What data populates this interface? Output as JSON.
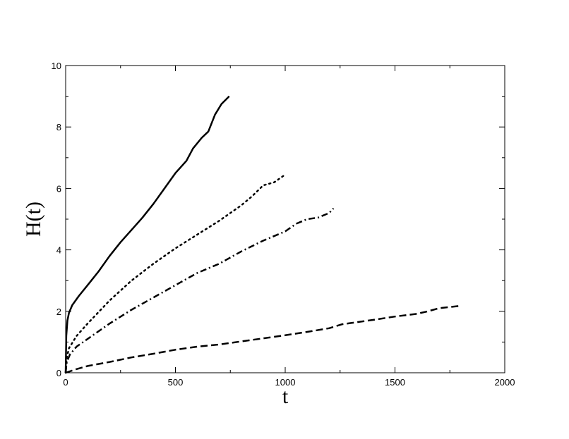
{
  "chart_data": {
    "type": "line",
    "title": "",
    "xlabel": "t",
    "ylabel": "H(t)",
    "xlim": [
      0,
      2000
    ],
    "ylim": [
      0,
      10
    ],
    "x_ticks": [
      0,
      500,
      1000,
      1500,
      2000
    ],
    "y_ticks": [
      0,
      2,
      4,
      6,
      8,
      10
    ],
    "grid": false,
    "legend": "none",
    "series": [
      {
        "style": "solid",
        "points": [
          [
            0,
            0
          ],
          [
            3,
            1.2
          ],
          [
            8,
            1.7
          ],
          [
            15,
            1.95
          ],
          [
            30,
            2.2
          ],
          [
            60,
            2.5
          ],
          [
            100,
            2.85
          ],
          [
            150,
            3.3
          ],
          [
            200,
            3.8
          ],
          [
            250,
            4.25
          ],
          [
            300,
            4.65
          ],
          [
            350,
            5.05
          ],
          [
            400,
            5.5
          ],
          [
            450,
            6.0
          ],
          [
            500,
            6.5
          ],
          [
            550,
            6.9
          ],
          [
            580,
            7.3
          ],
          [
            620,
            7.65
          ],
          [
            650,
            7.85
          ],
          [
            680,
            8.4
          ],
          [
            710,
            8.75
          ],
          [
            745,
            9.0
          ]
        ]
      },
      {
        "style": "dotted",
        "points": [
          [
            0,
            0
          ],
          [
            5,
            0.5
          ],
          [
            15,
            0.8
          ],
          [
            50,
            1.2
          ],
          [
            100,
            1.6
          ],
          [
            200,
            2.35
          ],
          [
            300,
            3.0
          ],
          [
            400,
            3.55
          ],
          [
            500,
            4.05
          ],
          [
            600,
            4.5
          ],
          [
            700,
            4.95
          ],
          [
            800,
            5.45
          ],
          [
            850,
            5.75
          ],
          [
            900,
            6.1
          ],
          [
            950,
            6.2
          ],
          [
            1000,
            6.45
          ]
        ]
      },
      {
        "style": "dash-dot",
        "points": [
          [
            0,
            0
          ],
          [
            5,
            0.35
          ],
          [
            20,
            0.6
          ],
          [
            50,
            0.85
          ],
          [
            100,
            1.1
          ],
          [
            200,
            1.6
          ],
          [
            300,
            2.05
          ],
          [
            400,
            2.45
          ],
          [
            500,
            2.85
          ],
          [
            600,
            3.25
          ],
          [
            700,
            3.55
          ],
          [
            800,
            3.95
          ],
          [
            900,
            4.3
          ],
          [
            1000,
            4.6
          ],
          [
            1050,
            4.85
          ],
          [
            1100,
            5.0
          ],
          [
            1150,
            5.05
          ],
          [
            1200,
            5.2
          ],
          [
            1220,
            5.35
          ]
        ]
      },
      {
        "style": "dashed",
        "points": [
          [
            0,
            0
          ],
          [
            50,
            0.12
          ],
          [
            100,
            0.22
          ],
          [
            200,
            0.35
          ],
          [
            300,
            0.5
          ],
          [
            400,
            0.62
          ],
          [
            500,
            0.75
          ],
          [
            600,
            0.85
          ],
          [
            700,
            0.92
          ],
          [
            800,
            1.02
          ],
          [
            900,
            1.12
          ],
          [
            1000,
            1.22
          ],
          [
            1100,
            1.33
          ],
          [
            1200,
            1.45
          ],
          [
            1260,
            1.58
          ],
          [
            1300,
            1.62
          ],
          [
            1400,
            1.72
          ],
          [
            1500,
            1.83
          ],
          [
            1600,
            1.92
          ],
          [
            1650,
            2.0
          ],
          [
            1700,
            2.1
          ],
          [
            1800,
            2.18
          ]
        ]
      }
    ]
  }
}
